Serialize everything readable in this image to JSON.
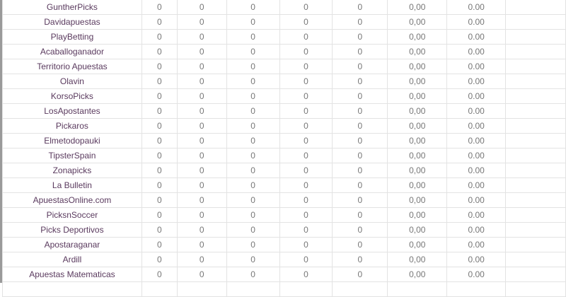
{
  "colors": {
    "name_text": "#5a3a5e",
    "value_text": "#777777",
    "grid": "#e3e3e3"
  },
  "rows": [
    {
      "name": "GuntherPicks",
      "values": [
        "0",
        "0",
        "0",
        "0",
        "0",
        "0,00",
        "0.00",
        ""
      ]
    },
    {
      "name": "Davidapuestas",
      "values": [
        "0",
        "0",
        "0",
        "0",
        "0",
        "0,00",
        "0.00",
        ""
      ]
    },
    {
      "name": "PlayBetting",
      "values": [
        "0",
        "0",
        "0",
        "0",
        "0",
        "0,00",
        "0.00",
        ""
      ]
    },
    {
      "name": "Acaballoganador",
      "values": [
        "0",
        "0",
        "0",
        "0",
        "0",
        "0,00",
        "0.00",
        ""
      ]
    },
    {
      "name": "Territorio Apuestas",
      "values": [
        "0",
        "0",
        "0",
        "0",
        "0",
        "0,00",
        "0.00",
        ""
      ]
    },
    {
      "name": "Olavin",
      "values": [
        "0",
        "0",
        "0",
        "0",
        "0",
        "0,00",
        "0.00",
        ""
      ]
    },
    {
      "name": "KorsoPicks",
      "values": [
        "0",
        "0",
        "0",
        "0",
        "0",
        "0,00",
        "0.00",
        ""
      ]
    },
    {
      "name": "LosApostantes",
      "values": [
        "0",
        "0",
        "0",
        "0",
        "0",
        "0,00",
        "0.00",
        ""
      ]
    },
    {
      "name": "Pickaros",
      "values": [
        "0",
        "0",
        "0",
        "0",
        "0",
        "0,00",
        "0.00",
        ""
      ]
    },
    {
      "name": "Elmetodopauki",
      "values": [
        "0",
        "0",
        "0",
        "0",
        "0",
        "0,00",
        "0.00",
        ""
      ]
    },
    {
      "name": "TipsterSpain",
      "values": [
        "0",
        "0",
        "0",
        "0",
        "0",
        "0,00",
        "0.00",
        ""
      ]
    },
    {
      "name": "Zonapicks",
      "values": [
        "0",
        "0",
        "0",
        "0",
        "0",
        "0,00",
        "0.00",
        ""
      ]
    },
    {
      "name": "La Bulletin",
      "values": [
        "0",
        "0",
        "0",
        "0",
        "0",
        "0,00",
        "0.00",
        ""
      ]
    },
    {
      "name": "ApuestasOnline.com",
      "values": [
        "0",
        "0",
        "0",
        "0",
        "0",
        "0,00",
        "0.00",
        ""
      ]
    },
    {
      "name": "PicksnSoccer",
      "values": [
        "0",
        "0",
        "0",
        "0",
        "0",
        "0,00",
        "0.00",
        ""
      ]
    },
    {
      "name": "Picks Deportivos",
      "values": [
        "0",
        "0",
        "0",
        "0",
        "0",
        "0,00",
        "0.00",
        ""
      ]
    },
    {
      "name": "Apostaraganar",
      "values": [
        "0",
        "0",
        "0",
        "0",
        "0",
        "0,00",
        "0.00",
        ""
      ]
    },
    {
      "name": "Ardill",
      "values": [
        "0",
        "0",
        "0",
        "0",
        "0",
        "0,00",
        "0.00",
        ""
      ]
    },
    {
      "name": "Apuestas Matematicas",
      "values": [
        "0",
        "0",
        "0",
        "0",
        "0",
        "0,00",
        "0.00",
        ""
      ]
    },
    {
      "name": "",
      "values": [
        "",
        "",
        "",
        "",
        "",
        "",
        "",
        ""
      ]
    }
  ]
}
